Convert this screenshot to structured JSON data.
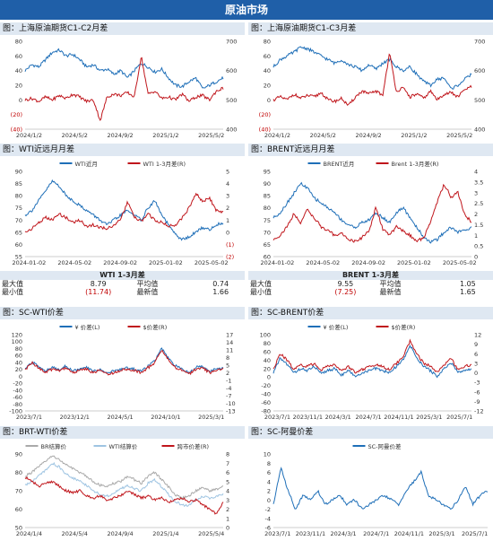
{
  "banner": "原油市场",
  "sections": [
    "图：上海原油期货C1-C2月差",
    "图：上海原油期货C1-C3月差",
    "图：WTI近远月月差",
    "图：BRENT近远月月差",
    "图：SC-WTI价差",
    "图：SC-BRENT价差",
    "图：BRT-WTI价差",
    "图：SC-阿曼价差"
  ],
  "stats": [
    {
      "title": "WTI 1-3月差",
      "max_label": "最大值",
      "max": "8.79",
      "avg_label": "平均值",
      "avg": "0.74",
      "min_label": "最小值",
      "min": "(11.74)",
      "latest_label": "最新值",
      "latest": "1.66"
    },
    {
      "title": "BRENT 1-3月差",
      "max_label": "最大值",
      "max": "9.55",
      "avg_label": "平均值",
      "avg": "1.05",
      "min_label": "最小值",
      "min": "(7.25)",
      "latest_label": "最新值",
      "latest": "1.65"
    }
  ],
  "colors": {
    "blue": "#1f6fb8",
    "red": "#c0161c",
    "gray": "#a9a9a9",
    "lightblue": "#9ec4e2"
  },
  "chart_data": [
    {
      "type": "line",
      "x": [
        "2024/1/2",
        "2024/5/2",
        "2024/9/2",
        "2025/1/2",
        "2025/5/2"
      ],
      "yleft": [
        "80",
        "60",
        "40",
        "20",
        "0",
        "(20)",
        "(40)"
      ],
      "yright": [
        "700",
        "600",
        "500",
        "400"
      ],
      "leftRange": [
        -40,
        80
      ],
      "rightRange": [
        400,
        700
      ],
      "series": [
        {
          "axis": "left",
          "color": "#1f6fb8",
          "keys": [
            40,
            48,
            45,
            55,
            65,
            68,
            60,
            62,
            55,
            45,
            48,
            40,
            42,
            35,
            40,
            30,
            40,
            50,
            45,
            38,
            42,
            30,
            20,
            18,
            25,
            30,
            15,
            20,
            25,
            30
          ]
        },
        {
          "axis": "right",
          "color": "#c0161c",
          "keys": [
            500,
            505,
            495,
            510,
            500,
            515,
            505,
            520,
            510,
            495,
            500,
            430,
            510,
            520,
            515,
            525,
            510,
            650,
            520,
            530,
            505,
            510,
            500,
            520,
            495,
            510,
            515,
            500,
            530,
            540
          ]
        }
      ]
    },
    {
      "type": "line",
      "x": [
        "2024/1/2",
        "2024/5/2",
        "2024/9/2",
        "2025/1/2",
        "2025/5/2"
      ],
      "yleft": [
        "80",
        "60",
        "40",
        "20",
        "0",
        "(20)",
        "(40)"
      ],
      "yright": [
        "700",
        "600",
        "500",
        "400"
      ],
      "leftRange": [
        -40,
        80
      ],
      "rightRange": [
        400,
        700
      ],
      "series": [
        {
          "axis": "left",
          "color": "#1f6fb8",
          "keys": [
            45,
            55,
            60,
            65,
            72,
            70,
            65,
            60,
            55,
            50,
            55,
            48,
            45,
            40,
            48,
            42,
            50,
            55,
            45,
            40,
            45,
            35,
            25,
            20,
            28,
            30,
            15,
            20,
            28,
            35
          ]
        },
        {
          "axis": "right",
          "color": "#c0161c",
          "keys": [
            500,
            510,
            500,
            520,
            505,
            515,
            510,
            525,
            500,
            495,
            505,
            480,
            510,
            530,
            520,
            530,
            515,
            660,
            530,
            540,
            510,
            520,
            505,
            530,
            500,
            520,
            525,
            510,
            535,
            545
          ]
        }
      ]
    },
    {
      "type": "line",
      "x": [
        "2024-01-02",
        "2024-05-02",
        "2024-09-02",
        "2025-01-02",
        "2025-05-02"
      ],
      "yleft": [
        "90",
        "85",
        "80",
        "75",
        "70",
        "65",
        "60",
        "55"
      ],
      "yright": [
        "5",
        "4",
        "3",
        "2",
        "1",
        "0",
        "(1)",
        "(2)"
      ],
      "leftRange": [
        55,
        90
      ],
      "rightRange": [
        -2,
        5
      ],
      "legend": [
        "WTI近月",
        "WTI 1-3月差(R)"
      ],
      "series": [
        {
          "axis": "left",
          "color": "#1f6fb8",
          "keys": [
            72,
            74,
            78,
            82,
            86,
            84,
            80,
            78,
            76,
            74,
            72,
            70,
            68,
            70,
            72,
            74,
            72,
            70,
            75,
            78,
            72,
            68,
            64,
            62,
            63,
            65,
            67,
            66,
            68,
            69
          ]
        },
        {
          "axis": "right",
          "color": "#c0161c",
          "keys": [
            0,
            0.3,
            0.8,
            1.2,
            1.0,
            1.5,
            1.2,
            0.8,
            1.0,
            0.5,
            0.6,
            0.4,
            0.3,
            0.6,
            1.0,
            2.5,
            1.2,
            0.9,
            1.5,
            1.0,
            0.8,
            0.5,
            0.6,
            1.2,
            2.0,
            3.2,
            2.5,
            2.8,
            1.8,
            1.6
          ]
        }
      ]
    },
    {
      "type": "line",
      "x": [
        "2024-01-02",
        "2024-05-02",
        "2024-09-02",
        "2025-01-02",
        "2025-05-02"
      ],
      "yleft": [
        "95",
        "90",
        "85",
        "80",
        "75",
        "70",
        "65",
        "60"
      ],
      "yright": [
        "4",
        "3.5",
        "3",
        "2.5",
        "2",
        "1.5",
        "1",
        "0.5",
        "0"
      ],
      "leftRange": [
        60,
        95
      ],
      "rightRange": [
        0,
        4
      ],
      "legend": [
        "BRENT近月",
        "Brent 1-3月差(R)"
      ],
      "series": [
        {
          "axis": "left",
          "color": "#1f6fb8",
          "keys": [
            76,
            78,
            82,
            86,
            90,
            88,
            84,
            82,
            80,
            78,
            75,
            73,
            72,
            74,
            75,
            78,
            76,
            74,
            78,
            80,
            76,
            72,
            68,
            66,
            67,
            70,
            72,
            70,
            71,
            72
          ]
        },
        {
          "axis": "right",
          "color": "#c0161c",
          "keys": [
            0.8,
            1.0,
            1.4,
            2.0,
            1.6,
            2.2,
            1.8,
            1.4,
            1.2,
            1.0,
            1.1,
            0.8,
            0.7,
            0.9,
            1.2,
            2.3,
            1.3,
            1.0,
            1.4,
            1.2,
            1.0,
            0.7,
            0.9,
            1.6,
            2.6,
            3.4,
            2.8,
            3.0,
            2.0,
            1.6
          ]
        }
      ]
    },
    {
      "type": "line",
      "x": [
        "2023/7/1",
        "2023/12/1",
        "2024/5/1",
        "2024/10/1",
        "2025/3/1"
      ],
      "yleft": [
        "120",
        "100",
        "80",
        "60",
        "40",
        "20",
        "0",
        "-20",
        "-40",
        "-60",
        "-80",
        "-100"
      ],
      "yright": [
        "17",
        "14",
        "11",
        "8",
        "5",
        "2",
        "-1",
        "-4",
        "-7",
        "-10",
        "-13"
      ],
      "leftRange": [
        -100,
        120
      ],
      "rightRange": [
        -13,
        17
      ],
      "legend": [
        "¥ 价差(L)",
        "$价差(R)"
      ],
      "series": [
        {
          "axis": "left",
          "color": "#1f6fb8",
          "keys": [
            20,
            40,
            30,
            15,
            25,
            20,
            30,
            15,
            20,
            25,
            15,
            20,
            10,
            15,
            20,
            25,
            20,
            15,
            30,
            45,
            80,
            50,
            30,
            20,
            10,
            25,
            30,
            15,
            20,
            25
          ]
        },
        {
          "axis": "right",
          "color": "#c0161c",
          "keys": [
            3,
            6,
            4,
            2,
            3.5,
            3,
            4,
            2,
            3,
            3.5,
            2,
            3,
            1.5,
            2,
            3,
            3.5,
            3,
            2,
            4,
            6,
            11,
            7,
            4,
            3,
            1.5,
            3.5,
            4,
            2,
            3,
            3.5
          ]
        }
      ]
    },
    {
      "type": "line",
      "x": [
        "2023/7/1",
        "2023/11/1",
        "2024/3/1",
        "2024/7/1",
        "2024/11/1",
        "2025/3/1",
        "2025/7/1"
      ],
      "yleft": [
        "100",
        "80",
        "60",
        "40",
        "20",
        "0",
        "-20",
        "-40",
        "-60",
        "-80"
      ],
      "yright": [
        "12",
        "9",
        "6",
        "3",
        "0",
        "-3",
        "-6",
        "-9",
        "-12"
      ],
      "leftRange": [
        -80,
        100
      ],
      "rightRange": [
        -12,
        12
      ],
      "legend": [
        "¥ 价差(L)",
        "$价差(R)"
      ],
      "series": [
        {
          "axis": "left",
          "color": "#1f6fb8",
          "keys": [
            10,
            45,
            30,
            10,
            20,
            15,
            25,
            10,
            15,
            20,
            5,
            15,
            0,
            10,
            15,
            20,
            15,
            10,
            25,
            40,
            75,
            45,
            25,
            15,
            0,
            20,
            35,
            10,
            15,
            20
          ]
        },
        {
          "axis": "right",
          "color": "#c0161c",
          "keys": [
            1,
            6,
            4,
            1,
            2.5,
            2,
            3,
            1,
            2,
            2.5,
            0.5,
            2,
            0,
            1,
            2,
            2.5,
            2,
            1,
            3,
            5,
            10,
            6,
            3,
            2,
            0,
            2.5,
            4.5,
            1,
            2,
            2.5
          ]
        }
      ]
    },
    {
      "type": "line",
      "x": [
        "2024/1/4",
        "2024/5/4",
        "2024/9/4",
        "2025/1/4",
        "2025/5/4"
      ],
      "yleft": [
        "90",
        "80",
        "70",
        "60",
        "50"
      ],
      "yright": [
        "8",
        "7",
        "6",
        "5",
        "4",
        "3",
        "2",
        "1",
        "0"
      ],
      "leftRange": [
        50,
        90
      ],
      "rightRange": [
        0,
        8
      ],
      "legend": [
        "BR结算价",
        "WTI结算价",
        "跨市价差(R)"
      ],
      "series": [
        {
          "axis": "left",
          "color": "#a9a9a9",
          "keys": [
            78,
            80,
            83,
            86,
            89,
            87,
            84,
            82,
            80,
            78,
            75,
            73,
            72,
            74,
            75,
            78,
            76,
            74,
            78,
            80,
            76,
            72,
            68,
            66,
            67,
            70,
            72,
            70,
            71,
            72
          ]
        },
        {
          "axis": "left",
          "color": "#9ec4e2",
          "keys": [
            73,
            75,
            78,
            81,
            85,
            83,
            79,
            77,
            75,
            73,
            70,
            68,
            67,
            69,
            71,
            73,
            71,
            70,
            74,
            76,
            72,
            68,
            64,
            62,
            62,
            65,
            67,
            66,
            67,
            68
          ]
        },
        {
          "axis": "right",
          "color": "#c0161c",
          "keys": [
            5.5,
            5,
            4.5,
            4.8,
            5,
            4.5,
            4,
            3.8,
            4,
            3.5,
            3.2,
            3.5,
            3,
            3.2,
            3.5,
            4,
            3.6,
            3.2,
            3.4,
            3,
            3.2,
            2.8,
            3,
            3.2,
            2.8,
            3,
            2.5,
            2,
            1.5,
            2.8
          ]
        }
      ]
    },
    {
      "type": "line",
      "x": [
        "2023/7/1",
        "2023/11/1",
        "2024/3/1",
        "2024/7/1",
        "2024/11/1",
        "2025/3/1",
        "2025/7/1"
      ],
      "yleft": [
        "10",
        "8",
        "6",
        "4",
        "2",
        "0",
        "-2",
        "-4",
        "-6"
      ],
      "leftRange": [
        -6,
        10
      ],
      "legend": [
        "SC-阿曼价差"
      ],
      "series": [
        {
          "axis": "left",
          "color": "#1f6fb8",
          "keys": [
            -1,
            7,
            2,
            -2,
            1,
            0,
            2,
            -1,
            0,
            1,
            -1,
            0,
            -2,
            -1,
            0,
            1,
            0,
            -1,
            2,
            4,
            6,
            1,
            0,
            -1,
            -2,
            0,
            3,
            -1,
            1,
            2
          ]
        }
      ]
    }
  ]
}
